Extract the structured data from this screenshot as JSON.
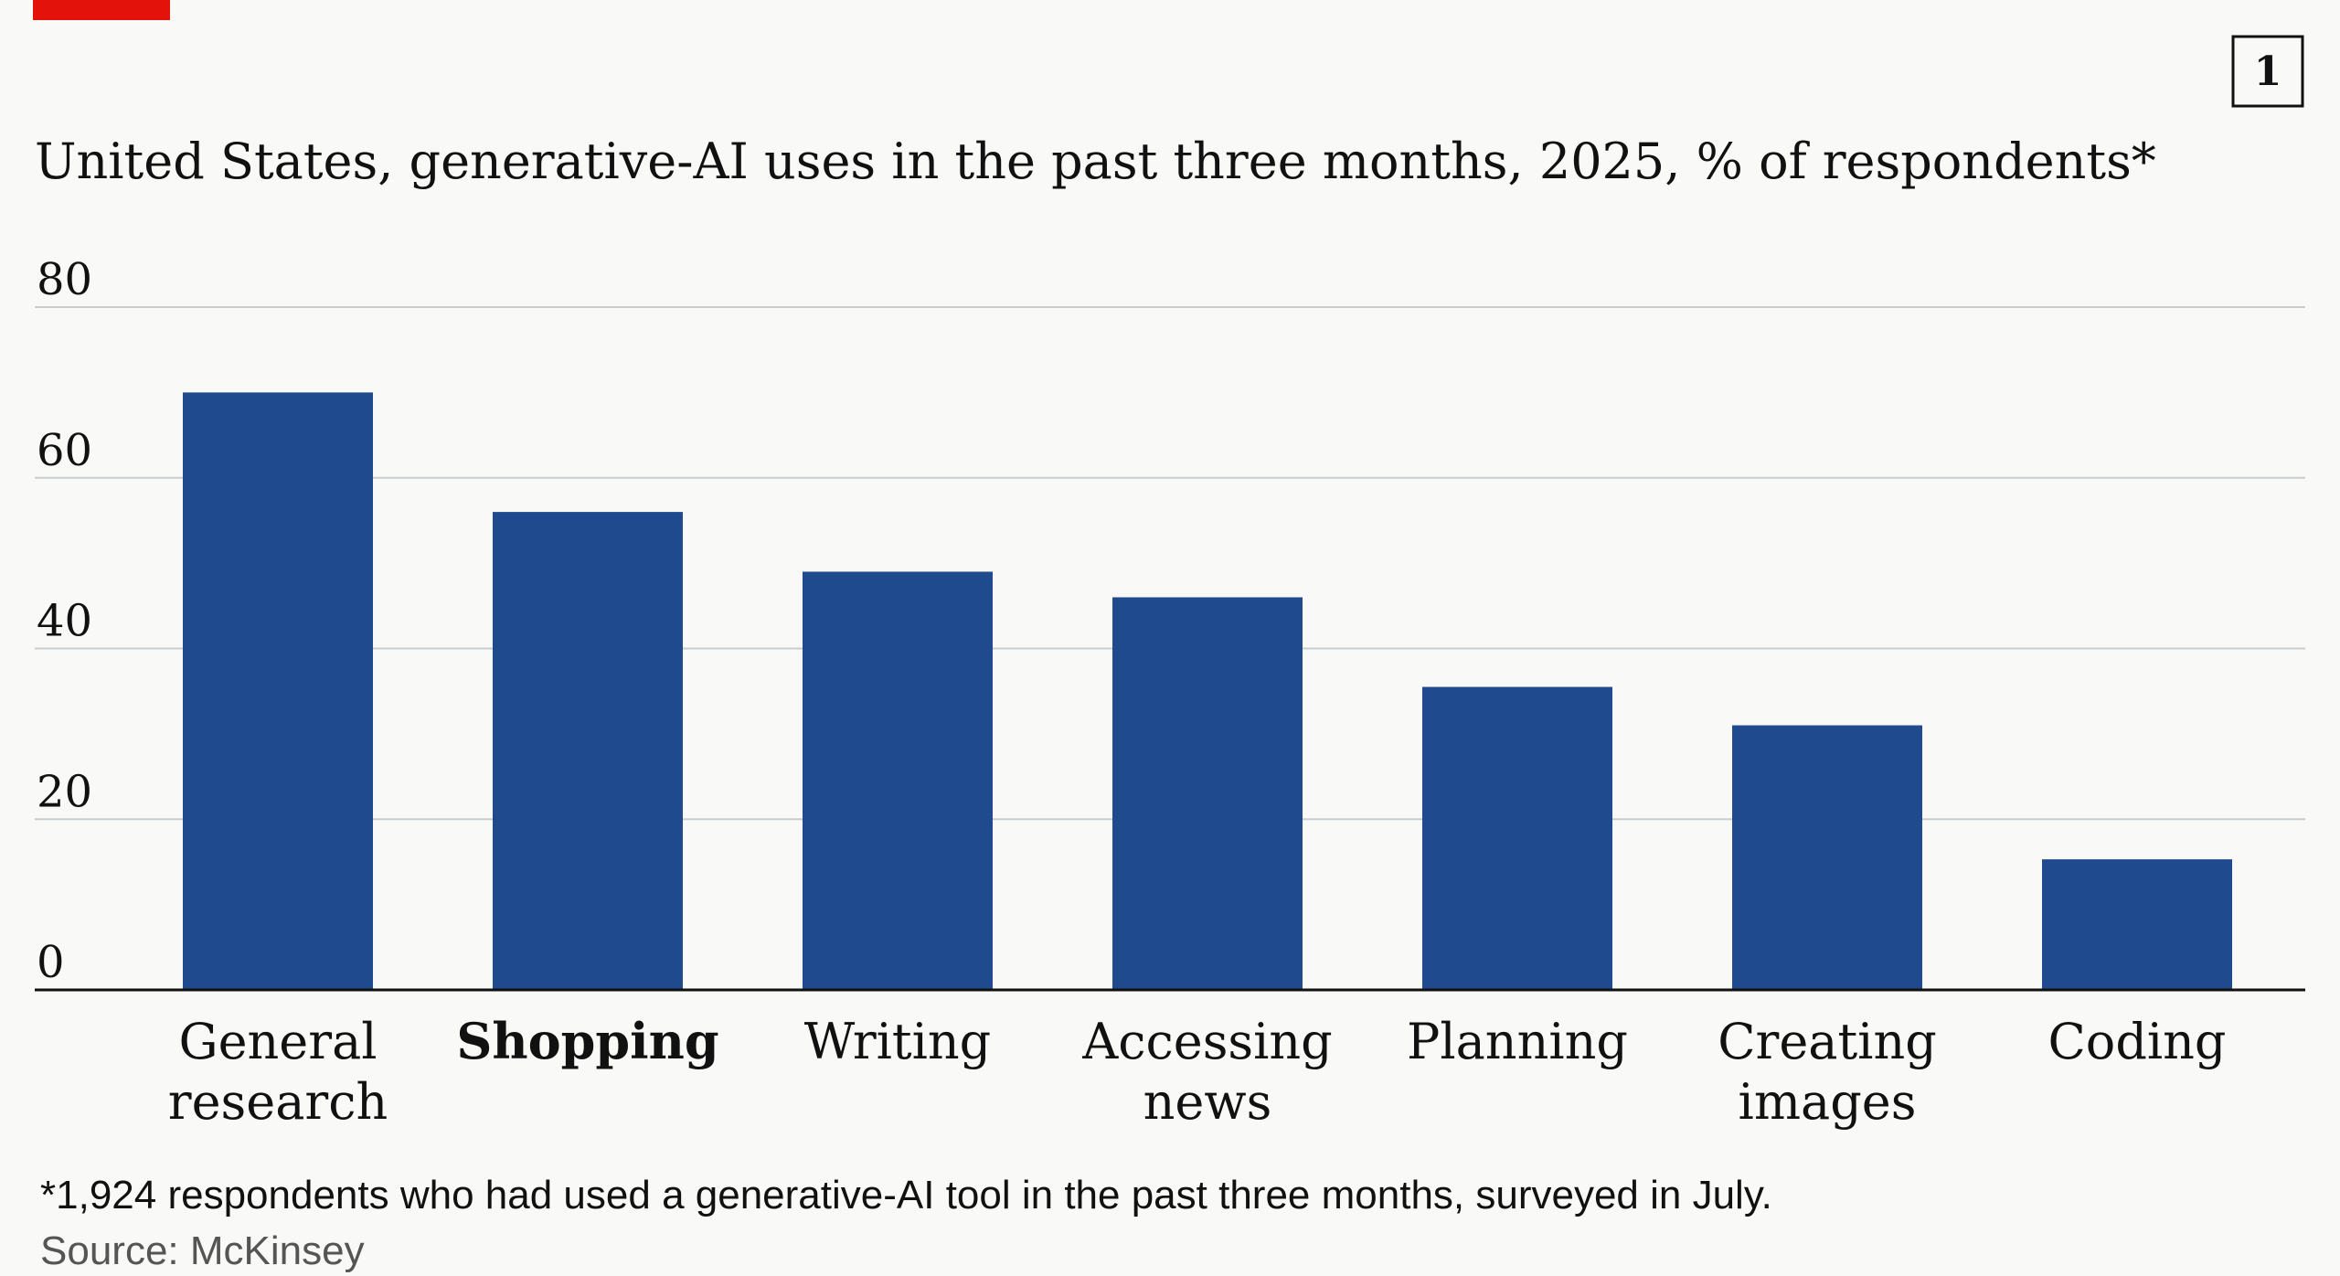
{
  "brand": {
    "accent": "#e3120b"
  },
  "figure_number": "1",
  "chart_data": {
    "type": "bar",
    "title": "United States, generative-AI uses in the past three months, 2025, % of respondents*",
    "categories": [
      "General research",
      "Shopping",
      "Writing",
      "Accessing news",
      "Planning",
      "Creating images",
      "Coding"
    ],
    "category_lines": [
      [
        "General",
        "research"
      ],
      [
        "Shopping"
      ],
      [
        "Writing"
      ],
      [
        "Accessing",
        "news"
      ],
      [
        "Planning"
      ],
      [
        "Creating",
        "images"
      ],
      [
        "Coding"
      ]
    ],
    "highlighted_category": "Shopping",
    "values": [
      70,
      56,
      49,
      46,
      35.5,
      31,
      15.3
    ],
    "ylim": [
      0,
      80
    ],
    "yticks": [
      0,
      20,
      40,
      60,
      80
    ],
    "grid": true,
    "bar_color": "#1f4a8e"
  },
  "footnote": "*1,924 respondents who had used a generative-AI tool in the past three months, surveyed in July.",
  "source": "Source: McKinsey"
}
